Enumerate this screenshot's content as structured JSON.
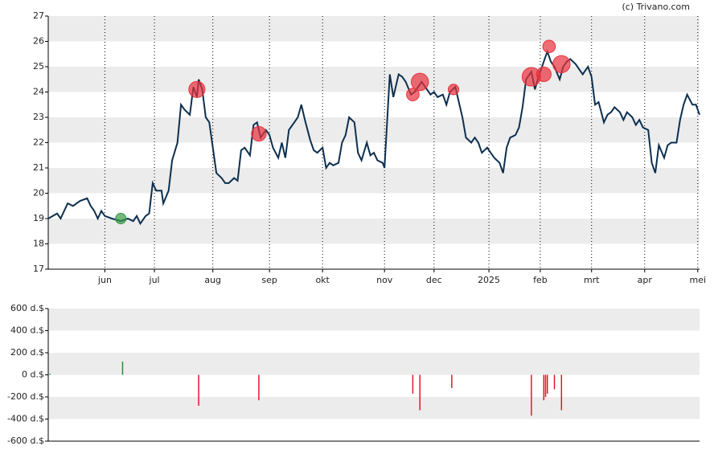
{
  "chart_data": [
    {
      "type": "line",
      "title": "(c) Trivano.com",
      "xlim": [
        0,
        368
      ],
      "xticks": [
        {
          "value": 32,
          "label": "jun"
        },
        {
          "value": 60,
          "label": "jul"
        },
        {
          "value": 93,
          "label": "aug"
        },
        {
          "value": 125,
          "label": "sep"
        },
        {
          "value": 155,
          "label": "okt"
        },
        {
          "value": 190,
          "label": "nov"
        },
        {
          "value": 218,
          "label": "dec"
        },
        {
          "value": 249,
          "label": "2025"
        },
        {
          "value": 278,
          "label": "feb"
        },
        {
          "value": 307,
          "label": "mrt"
        },
        {
          "value": 337,
          "label": "apr"
        },
        {
          "value": 367,
          "label": "mei"
        }
      ],
      "ylim": [
        17,
        27
      ],
      "yticks": [
        17,
        18,
        19,
        20,
        21,
        22,
        23,
        24,
        25,
        26,
        27
      ],
      "grid": true,
      "series": [
        {
          "type": "line",
          "color": "#0d2f4f",
          "x": [
            0,
            5,
            7,
            9,
            11,
            14,
            18,
            22,
            24,
            26,
            28,
            30,
            32,
            36,
            41,
            45,
            48,
            50,
            52,
            55,
            57,
            59,
            61,
            64,
            65,
            68,
            70,
            73,
            75,
            77,
            80,
            82,
            84,
            85,
            87,
            89,
            91,
            93,
            95,
            98,
            100,
            102,
            105,
            107,
            109,
            111,
            114,
            116,
            118,
            120,
            123,
            125,
            127,
            130,
            132,
            134,
            136,
            139,
            141,
            143,
            145,
            148,
            150,
            152,
            155,
            157,
            159,
            161,
            164,
            166,
            168,
            170,
            173,
            175,
            177,
            180,
            182,
            184,
            186,
            189,
            190,
            193,
            195,
            198,
            200,
            202,
            205,
            207,
            209,
            211,
            214,
            216,
            218,
            220,
            223,
            225,
            227,
            230,
            232,
            234,
            236,
            239,
            241,
            243,
            245,
            248,
            250,
            252,
            255,
            257,
            259,
            261,
            264,
            266,
            268,
            270,
            273,
            275,
            277,
            280,
            282,
            284,
            286,
            289,
            291,
            293,
            295,
            298,
            300,
            302,
            305,
            307,
            309,
            311,
            314,
            316,
            318,
            320,
            323,
            325,
            327,
            330,
            332,
            334,
            336,
            339,
            341,
            343,
            345,
            348,
            350,
            352,
            355,
            357,
            359,
            361,
            364,
            366,
            368
          ],
          "values": [
            19.0,
            19.2,
            19.0,
            19.3,
            19.6,
            19.5,
            19.7,
            19.8,
            19.5,
            19.3,
            19.0,
            19.3,
            19.1,
            19.0,
            18.9,
            19.0,
            18.9,
            19.1,
            18.8,
            19.1,
            19.2,
            20.4,
            20.1,
            20.1,
            19.6,
            20.1,
            21.3,
            22.0,
            23.5,
            23.3,
            23.1,
            24.2,
            23.8,
            24.5,
            24.1,
            23.0,
            22.8,
            21.8,
            20.8,
            20.6,
            20.4,
            20.4,
            20.6,
            20.5,
            21.7,
            21.8,
            21.5,
            22.7,
            22.8,
            22.2,
            22.5,
            22.3,
            21.8,
            21.4,
            22.0,
            21.4,
            22.5,
            22.8,
            23.0,
            23.5,
            22.9,
            22.1,
            21.7,
            21.6,
            21.8,
            21.0,
            21.2,
            21.1,
            21.2,
            22.0,
            22.3,
            23.0,
            22.8,
            21.6,
            21.3,
            22.0,
            21.5,
            21.6,
            21.3,
            21.2,
            21.0,
            24.7,
            23.8,
            24.7,
            24.6,
            24.4,
            23.9,
            24.0,
            24.2,
            24.4,
            24.1,
            23.9,
            24.0,
            23.8,
            23.9,
            23.5,
            24.0,
            24.2,
            23.6,
            23.0,
            22.2,
            22.0,
            22.2,
            22.0,
            21.6,
            21.8,
            21.6,
            21.4,
            21.2,
            20.8,
            21.8,
            22.2,
            22.3,
            22.6,
            23.4,
            24.5,
            24.8,
            24.1,
            24.6,
            25.2,
            25.6,
            25.2,
            25.0,
            24.5,
            25.0,
            25.2,
            25.3,
            25.1,
            24.9,
            24.7,
            25.0,
            24.6,
            23.5,
            23.6,
            22.8,
            23.1,
            23.2,
            23.4,
            23.2,
            22.9,
            23.2,
            23.0,
            22.7,
            22.9,
            22.6,
            22.5,
            21.2,
            20.8,
            21.9,
            21.4,
            21.9,
            22.0,
            22.0,
            22.9,
            23.5,
            23.9,
            23.5,
            23.5,
            23.1
          ]
        },
        {
          "type": "bubble",
          "color": "#e8313c",
          "x": [
            84,
            119,
            206,
            210,
            229,
            273,
            280,
            283,
            290
          ],
          "values": [
            24.1,
            22.35,
            23.9,
            24.4,
            24.1,
            24.6,
            24.7,
            25.8,
            25.1
          ],
          "sizes": [
            280,
            230,
            170,
            320,
            120,
            370,
            230,
            170,
            320
          ]
        },
        {
          "type": "bubble",
          "color": "#3a9a4a",
          "x": [
            41
          ],
          "values": [
            19.0
          ],
          "sizes": [
            120
          ]
        }
      ]
    },
    {
      "type": "bar",
      "xlim": [
        0,
        368
      ],
      "ylim": [
        -600,
        600
      ],
      "yticks": [
        {
          "value": -600,
          "label": "-600 d.$"
        },
        {
          "value": -400,
          "label": "-400 d.$"
        },
        {
          "value": -200,
          "label": "-200 d.$"
        },
        {
          "value": 0,
          "label": "0 d.$"
        },
        {
          "value": 200,
          "label": "200 d.$"
        },
        {
          "value": 400,
          "label": "400 d.$"
        },
        {
          "value": 600,
          "label": "600 d.$"
        }
      ],
      "grid": true,
      "positive_color": "#2e8b3e",
      "negative_color": "#e0182d",
      "x": [
        1,
        42,
        85,
        119,
        206,
        210,
        228,
        273,
        280,
        281,
        282,
        286,
        290
      ],
      "values": [
        10,
        120,
        -280,
        -230,
        -170,
        -320,
        -120,
        -370,
        -230,
        -200,
        -170,
        -130,
        -320
      ]
    }
  ]
}
